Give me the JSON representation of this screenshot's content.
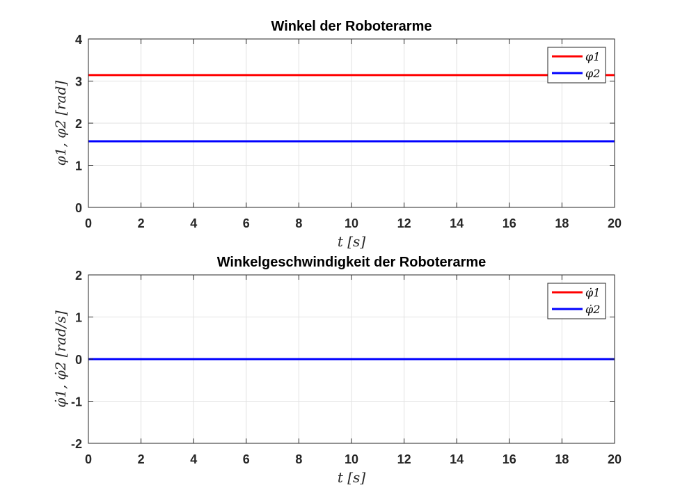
{
  "figure": {
    "background": "#ffffff"
  },
  "chart_data": [
    {
      "type": "line",
      "title": "Winkel der Roboterarme",
      "xlabel": "t [s]",
      "ylabel": "φ1, φ2 [rad]",
      "xlim": [
        0,
        20
      ],
      "ylim": [
        0,
        4
      ],
      "xticks": [
        0,
        2,
        4,
        6,
        8,
        10,
        12,
        14,
        16,
        18,
        20
      ],
      "yticks": [
        0,
        1,
        2,
        3,
        4
      ],
      "grid": true,
      "legend_position": "top-right",
      "series": [
        {
          "name": "φ1",
          "color": "#ff0000",
          "x": [
            0,
            20
          ],
          "y": [
            3.1416,
            3.1416
          ]
        },
        {
          "name": "φ2",
          "color": "#0000ff",
          "x": [
            0,
            20
          ],
          "y": [
            1.5708,
            1.5708
          ]
        }
      ]
    },
    {
      "type": "line",
      "title": "Winkelgeschwindigkeit der Roboterarme",
      "xlabel": "t [s]",
      "ylabel": "φ̇1, φ̇2 [rad/s]",
      "xlim": [
        0,
        20
      ],
      "ylim": [
        -2,
        2
      ],
      "xticks": [
        0,
        2,
        4,
        6,
        8,
        10,
        12,
        14,
        16,
        18,
        20
      ],
      "yticks": [
        -2,
        -1,
        0,
        1,
        2
      ],
      "grid": true,
      "legend_position": "top-right",
      "series": [
        {
          "name": "φ̇1",
          "color": "#ff0000",
          "x": [
            0,
            20
          ],
          "y": [
            0,
            0
          ]
        },
        {
          "name": "φ̇2",
          "color": "#0000ff",
          "x": [
            0,
            20
          ],
          "y": [
            0,
            0
          ]
        }
      ]
    }
  ]
}
